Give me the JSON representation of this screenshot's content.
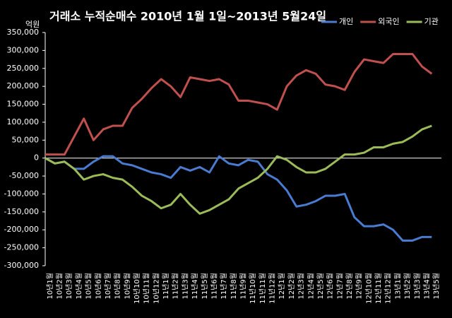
{
  "chart_data": {
    "type": "line",
    "title": "거래소  누적순매수 2010년 1월 1일~2013년 5월24일",
    "y_unit": "억원",
    "categories": [
      "10년1월",
      "10년2월",
      "10년3월",
      "10년4월",
      "10년5월",
      "10년6월",
      "10년7월",
      "10년8월",
      "10년9월",
      "10년10월",
      "10년11월",
      "10년12월",
      "11년1월",
      "11년2월",
      "11년3월",
      "11년4월",
      "11년5월",
      "11년6월",
      "11년7월",
      "11년8월",
      "11년9월",
      "11년10월",
      "11년11월",
      "11년12월",
      "12년1월",
      "12년2월",
      "12년3월",
      "12년4월",
      "12년5월",
      "12년6월",
      "12년7월",
      "12년8월",
      "12년9월",
      "12년10월",
      "12년11월",
      "12년12월",
      "13년1월",
      "13년2월",
      "13년3월",
      "13년4월",
      "13년5월"
    ],
    "series": [
      {
        "name": "개인",
        "color": "#4a7bd0",
        "values": [
          0,
          -15000,
          -10000,
          -30000,
          -30000,
          -10000,
          5000,
          5000,
          -15000,
          -20000,
          -30000,
          -40000,
          -45000,
          -55000,
          -25000,
          -35000,
          -25000,
          -40000,
          5000,
          -15000,
          -20000,
          -5000,
          -10000,
          -45000,
          -60000,
          -90000,
          -135000,
          -130000,
          -120000,
          -105000,
          -105000,
          -100000,
          -165000,
          -190000,
          -190000,
          -185000,
          -200000,
          -230000,
          -230000,
          -220000,
          -220000
        ]
      },
      {
        "name": "외국인",
        "color": "#c0504d",
        "values": [
          10000,
          10000,
          10000,
          60000,
          110000,
          50000,
          80000,
          90000,
          90000,
          140000,
          165000,
          195000,
          220000,
          200000,
          170000,
          225000,
          220000,
          215000,
          220000,
          205000,
          160000,
          160000,
          155000,
          150000,
          135000,
          200000,
          230000,
          245000,
          235000,
          205000,
          200000,
          190000,
          240000,
          275000,
          270000,
          265000,
          290000,
          290000,
          290000,
          255000,
          235000
        ]
      },
      {
        "name": "기관",
        "color": "#9bbb59",
        "values": [
          0,
          -15000,
          -10000,
          -30000,
          -60000,
          -50000,
          -45000,
          -55000,
          -60000,
          -80000,
          -105000,
          -120000,
          -140000,
          -130000,
          -100000,
          -130000,
          -155000,
          -145000,
          -130000,
          -115000,
          -85000,
          -70000,
          -55000,
          -30000,
          5000,
          -5000,
          -25000,
          -40000,
          -40000,
          -30000,
          -10000,
          10000,
          10000,
          15000,
          30000,
          30000,
          40000,
          45000,
          60000,
          80000,
          90000
        ]
      }
    ],
    "ylim": [
      -300000,
      350000
    ],
    "yticks": [
      {
        "value": -300000,
        "label": "-300,000"
      },
      {
        "value": -250000,
        "label": "-250,000"
      },
      {
        "value": -200000,
        "label": "-200,000"
      },
      {
        "value": -150000,
        "label": "-150,000"
      },
      {
        "value": -100000,
        "label": "-100,000"
      },
      {
        "value": -50000,
        "label": "-50,000"
      },
      0,
      {
        "value": 50000,
        "label": "50,000"
      },
      {
        "value": 100000,
        "label": "100,000"
      },
      {
        "value": 150000,
        "label": "150,000"
      },
      {
        "value": 200000,
        "label": "200,000"
      },
      {
        "value": 250000,
        "label": "250,000"
      },
      {
        "value": 300000,
        "label": "300,000"
      },
      {
        "value": 350000,
        "label": "350,000"
      }
    ],
    "grid": false
  }
}
